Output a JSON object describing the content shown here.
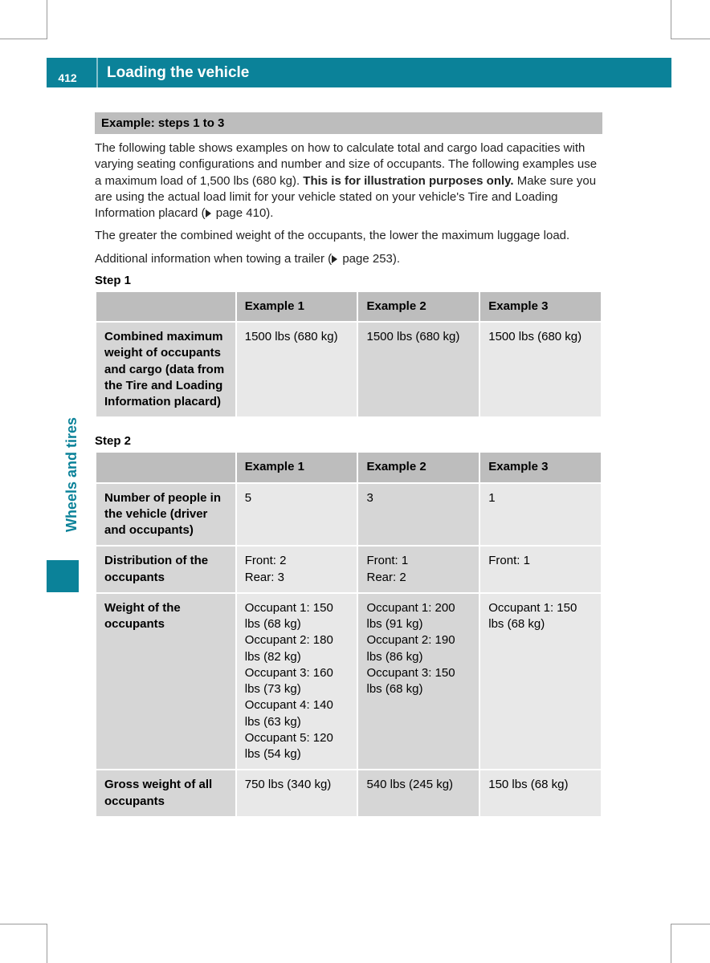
{
  "page": {
    "number": "412",
    "title": "Loading the vehicle",
    "side_tab": "Wheels and tires"
  },
  "colors": {
    "accent": "#0b8299",
    "section_bar": "#bdbdbd",
    "cell_dark": "#d6d6d6",
    "cell_light": "#e8e8e8"
  },
  "section_title": "Example: steps 1 to 3",
  "intro_p1a": "The following table shows examples on how to calculate total and cargo load capacities with varying seating configurations and number and size of occupants. The following examples use a maximum load of 1,500 lbs (680 kg). ",
  "intro_bold": "This is for illustration purposes only.",
  "intro_p1b": " Make sure you are using the actual load limit for your vehicle stated on your vehicle's Tire and Loading Information placard (",
  "intro_ref1": " page 410).",
  "intro_p2": "The greater the combined weight of the occupants, the lower the maximum luggage load.",
  "intro_p3a": "Additional information when towing a trailer (",
  "intro_ref2": " page 253).",
  "step1": {
    "heading": "Step 1",
    "columns": [
      "",
      "Example 1",
      "Example 2",
      "Example 3"
    ],
    "row1_label": "Combined maximum weight of occupants and cargo (data from the Tire and Loading Information placard)",
    "row1": [
      "1500 lbs (680 kg)",
      "1500 lbs (680 kg)",
      "1500 lbs (680 kg)"
    ]
  },
  "step2": {
    "heading": "Step 2",
    "columns": [
      "",
      "Example 1",
      "Example 2",
      "Example 3"
    ],
    "rows": {
      "people": {
        "label": "Number of people in the vehicle (driver and occupants)",
        "ex1": "5",
        "ex2": "3",
        "ex3": "1"
      },
      "dist": {
        "label": "Distribution of the occupants",
        "ex1": "Front: 2\nRear: 3",
        "ex2": "Front: 1\nRear: 2",
        "ex3": "Front: 1"
      },
      "weight": {
        "label": "Weight of the occupants",
        "ex1": "Occupant 1: 150 lbs (68 kg)\nOccupant 2: 180 lbs (82 kg)\nOccupant 3: 160 lbs (73 kg)\nOccupant 4: 140 lbs (63 kg)\nOccupant 5: 120 lbs (54 kg)",
        "ex2": "Occupant 1: 200 lbs (91 kg)\nOccupant 2: 190 lbs (86 kg)\nOccupant 3: 150 lbs (68 kg)",
        "ex3": "Occupant 1: 150 lbs (68 kg)"
      },
      "gross": {
        "label": "Gross weight of all occupants",
        "ex1": "750 lbs (340 kg)",
        "ex2": "540 lbs (245 kg)",
        "ex3": "150 lbs (68 kg)"
      }
    }
  }
}
